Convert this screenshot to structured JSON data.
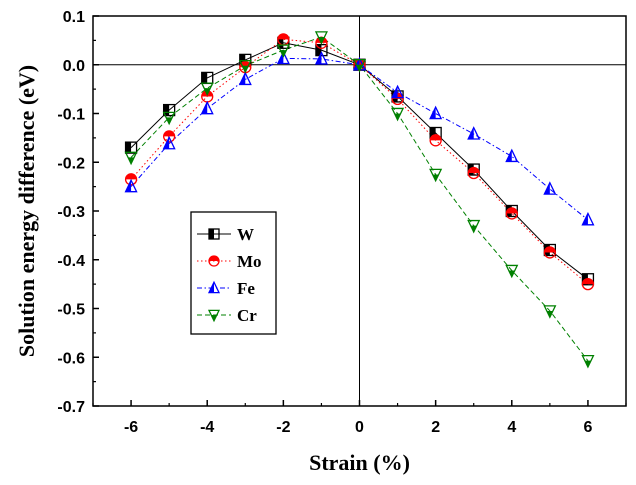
{
  "chart_data": {
    "type": "line",
    "title": "",
    "xlabel": "Strain (%)",
    "ylabel": "Solution energy difference (eV)",
    "xlim": [
      -7,
      7
    ],
    "ylim": [
      -0.7,
      0.1
    ],
    "xticks": [
      -6,
      -4,
      -2,
      0,
      2,
      4,
      6
    ],
    "xtick_labels": [
      "-6",
      "-4",
      "-2",
      "0",
      "2",
      "4",
      "6"
    ],
    "yticks": [
      0.1,
      0.0,
      -0.1,
      -0.2,
      -0.3,
      -0.4,
      -0.5,
      -0.6,
      -0.7
    ],
    "ytick_labels": [
      "0.1",
      "0.0",
      "-0.1",
      "-0.2",
      "-0.3",
      "-0.4",
      "-0.5",
      "-0.6",
      "-0.7"
    ],
    "reference_lines": {
      "x": 0,
      "y": 0
    },
    "legend_position": "center-left",
    "x": [
      -6,
      -5,
      -4,
      -3,
      -2,
      -1,
      0,
      1,
      2,
      3,
      4,
      5,
      6
    ],
    "series": [
      {
        "name": "W",
        "color": "#000000",
        "marker": "half-square",
        "dash": "solid",
        "values": [
          -0.17,
          -0.093,
          -0.027,
          0.01,
          0.045,
          0.03,
          0.0,
          -0.065,
          -0.14,
          -0.215,
          -0.3,
          -0.38,
          -0.44
        ]
      },
      {
        "name": "Mo",
        "color": "#ff0000",
        "marker": "half-circle",
        "dash": "dotted",
        "values": [
          -0.235,
          -0.147,
          -0.065,
          -0.005,
          0.052,
          0.045,
          0.0,
          -0.07,
          -0.155,
          -0.222,
          -0.305,
          -0.385,
          -0.45
        ]
      },
      {
        "name": "Fe",
        "color": "#0000ff",
        "marker": "half-triangle-up",
        "dash": "dashdot",
        "values": [
          -0.25,
          -0.162,
          -0.09,
          -0.03,
          0.013,
          0.012,
          0.0,
          -0.057,
          -0.1,
          -0.142,
          -0.188,
          -0.255,
          -0.318
        ]
      },
      {
        "name": "Cr",
        "color": "#008000",
        "marker": "half-triangle-down",
        "dash": "dashed",
        "values": [
          -0.19,
          -0.108,
          -0.048,
          -0.002,
          0.03,
          0.057,
          0.0,
          -0.1,
          -0.225,
          -0.33,
          -0.422,
          -0.505,
          -0.607
        ]
      }
    ]
  }
}
